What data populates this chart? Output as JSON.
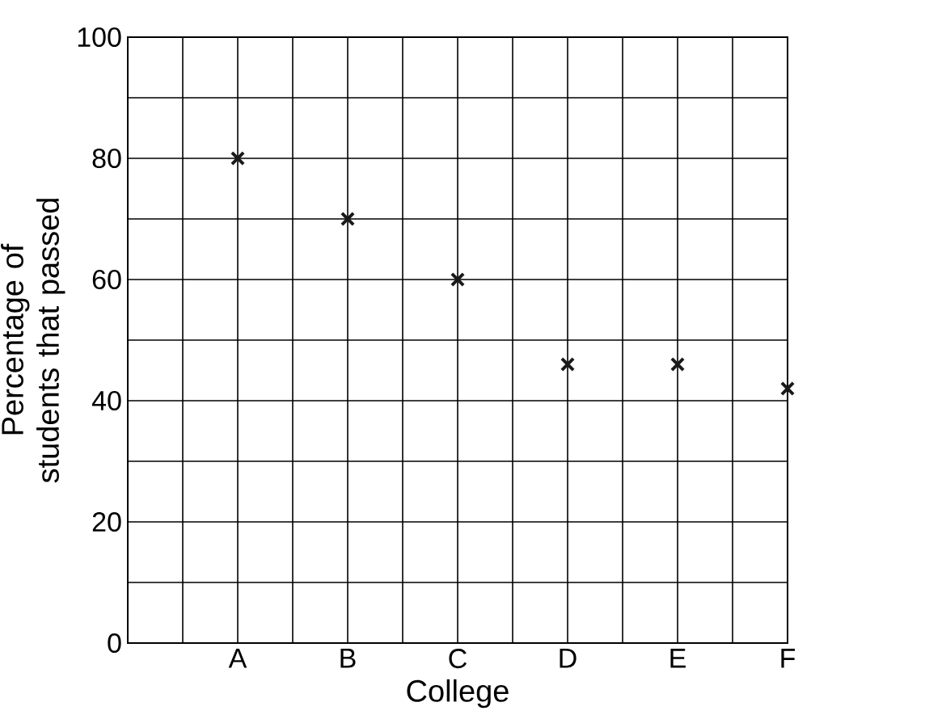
{
  "chart_data": {
    "type": "scatter",
    "xlabel": "College",
    "ylabel": "Percentage of\nstudents that passed",
    "categories": [
      "A",
      "B",
      "C",
      "D",
      "E",
      "F"
    ],
    "values": [
      80,
      70,
      60,
      46,
      46,
      42
    ],
    "color": "#1a1a1a",
    "marker": "cross",
    "grid": true,
    "ylim": [
      0,
      100
    ],
    "yticks": [
      0,
      {
        "value": 10,
        "label": null
      },
      20,
      {
        "value": 30,
        "label": null
      },
      40,
      {
        "value": 50,
        "label": null
      },
      60,
      {
        "value": 70,
        "label": null
      },
      80,
      {
        "value": 90,
        "label": null
      },
      100
    ]
  }
}
